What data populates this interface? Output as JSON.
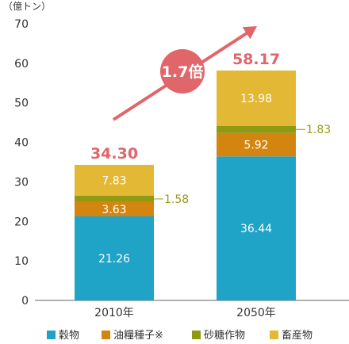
{
  "chart_data": {
    "type": "bar",
    "stacked": true,
    "unit_label": "（億トン）",
    "categories": [
      "2010年",
      "2050年"
    ],
    "ylim": [
      0,
      70
    ],
    "yticks": [
      0,
      10,
      20,
      30,
      40,
      50,
      60,
      70
    ],
    "grid": false,
    "series": [
      {
        "name": "穀物",
        "color": "#1fa3c7",
        "values": [
          21.26,
          36.44
        ],
        "labels": [
          "21.26",
          "36.44"
        ]
      },
      {
        "name": "油糧種子※",
        "color": "#d4850f",
        "values": [
          3.63,
          5.92
        ],
        "labels": [
          "3.63",
          "5.92"
        ]
      },
      {
        "name": "砂糖作物",
        "color": "#8f9a12",
        "values": [
          1.58,
          1.83
        ],
        "labels": [
          "1.58",
          "1.83"
        ],
        "label_position": "outside-right"
      },
      {
        "name": "畜産物",
        "color": "#e3b834",
        "values": [
          7.83,
          13.98
        ],
        "labels": [
          "7.83",
          "13.98"
        ]
      }
    ],
    "totals": [
      "34.30",
      "58.17"
    ],
    "annotation": {
      "text": "1.7倍",
      "color": "#e0666a",
      "arrow_color": "#e0666a"
    },
    "legend_position": "bottom"
  }
}
